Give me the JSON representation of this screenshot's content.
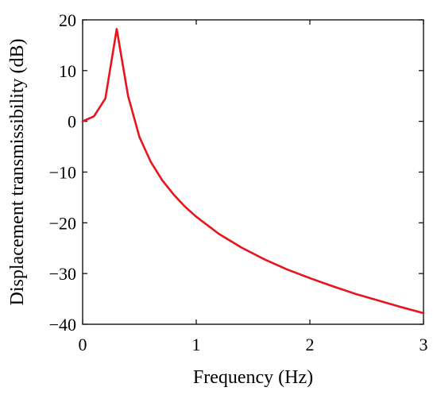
{
  "chart_data": {
    "type": "line",
    "xlabel": "Frequency (Hz)",
    "ylabel": "Displacement transmissibility (dB)",
    "xlim": [
      0,
      3
    ],
    "ylim": [
      -40,
      20
    ],
    "xticks": [
      0,
      1,
      2,
      3
    ],
    "xtick_labels": [
      "0",
      "1",
      "2",
      "3"
    ],
    "yticks": [
      20,
      10,
      0,
      -10,
      -20,
      -30,
      -40
    ],
    "ytick_labels": [
      "20",
      "10",
      "0",
      "−10",
      "−20",
      "−30",
      "−40"
    ],
    "grid": false,
    "series": [
      {
        "color": "#e8141c",
        "x": [
          0,
          0.1,
          0.2,
          0.3,
          0.4,
          0.5,
          0.6,
          0.7,
          0.8,
          0.9,
          1.0,
          1.2,
          1.4,
          1.6,
          1.8,
          2.0,
          2.2,
          2.4,
          2.6,
          2.8,
          3.0
        ],
        "y": [
          0.0,
          1.0,
          4.5,
          18.2,
          5.0,
          -3.1,
          -8.0,
          -11.6,
          -14.4,
          -16.8,
          -18.8,
          -22.2,
          -24.9,
          -27.2,
          -29.2,
          -30.9,
          -32.5,
          -34.0,
          -35.3,
          -36.6,
          -37.8
        ]
      }
    ]
  }
}
